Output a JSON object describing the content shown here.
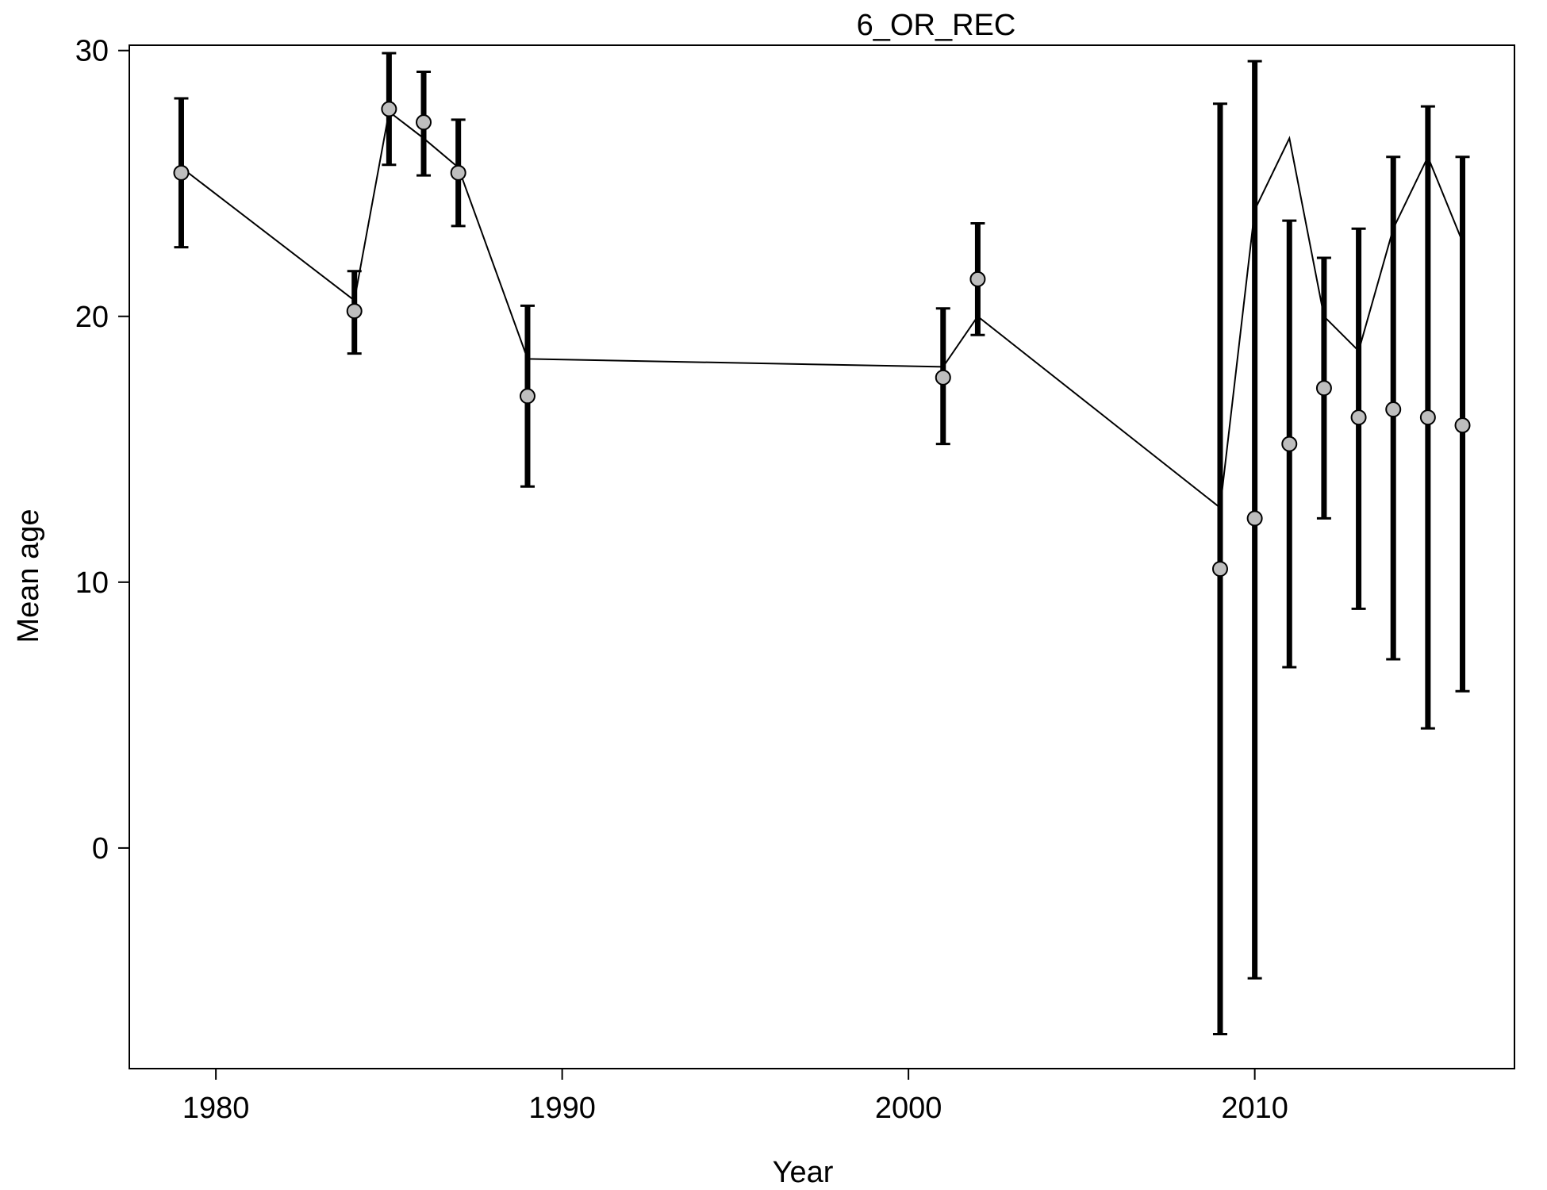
{
  "chart_data": {
    "type": "line",
    "title": "6_OR_REC",
    "xlabel": "Year",
    "ylabel": "Mean age",
    "xlim": [
      1977.5,
      2017.5
    ],
    "ylim": [
      -8.3,
      30.2
    ],
    "x_ticks": [
      1980,
      1990,
      2000,
      2010
    ],
    "y_ticks": [
      0,
      10,
      20,
      30
    ],
    "grid": false,
    "legend": "none",
    "series": [
      {
        "kind": "observed",
        "marker": "circle",
        "fill_color": "#bebebe",
        "points": [
          {
            "x": 1979,
            "y": 25.4,
            "lo": 22.6,
            "hi": 28.2
          },
          {
            "x": 1984,
            "y": 20.2,
            "lo": 18.6,
            "hi": 21.7
          },
          {
            "x": 1985,
            "y": 27.8,
            "lo": 25.7,
            "hi": 29.9
          },
          {
            "x": 1986,
            "y": 27.3,
            "lo": 25.3,
            "hi": 29.2
          },
          {
            "x": 1987,
            "y": 25.4,
            "lo": 23.4,
            "hi": 27.4
          },
          {
            "x": 1989,
            "y": 17.0,
            "lo": 13.6,
            "hi": 20.4
          },
          {
            "x": 2001,
            "y": 17.7,
            "lo": 15.2,
            "hi": 20.3
          },
          {
            "x": 2002,
            "y": 21.4,
            "lo": 19.3,
            "hi": 23.5
          },
          {
            "x": 2009,
            "y": 10.5,
            "lo": -7.0,
            "hi": 28.0
          },
          {
            "x": 2010,
            "y": 12.4,
            "lo": -4.9,
            "hi": 29.6
          },
          {
            "x": 2011,
            "y": 15.2,
            "lo": 6.8,
            "hi": 23.6
          },
          {
            "x": 2012,
            "y": 17.3,
            "lo": 12.4,
            "hi": 22.2
          },
          {
            "x": 2013,
            "y": 16.2,
            "lo": 9.0,
            "hi": 23.3
          },
          {
            "x": 2014,
            "y": 16.5,
            "lo": 7.1,
            "hi": 26.0
          },
          {
            "x": 2015,
            "y": 16.2,
            "lo": 4.5,
            "hi": 27.9
          },
          {
            "x": 2016,
            "y": 15.9,
            "lo": 5.9,
            "hi": 26.0
          }
        ]
      },
      {
        "kind": "expected",
        "line_color": "#000000",
        "x": [
          1979,
          1984,
          1985,
          1986,
          1987,
          1989,
          2001,
          2002,
          2009,
          2010,
          2011,
          2012,
          2013,
          2014,
          2015,
          2016
        ],
        "y": [
          25.6,
          20.6,
          27.7,
          26.7,
          25.6,
          18.4,
          18.1,
          20.0,
          12.8,
          24.0,
          26.7,
          20.0,
          18.7,
          23.3,
          26.0,
          22.8
        ]
      }
    ]
  }
}
